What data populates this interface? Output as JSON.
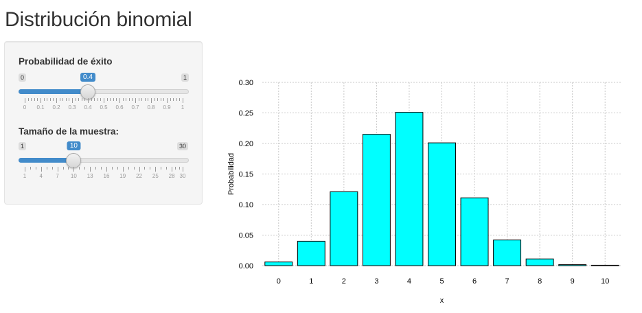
{
  "page": {
    "title": "Distribución binomial"
  },
  "sidebar": {
    "prob_slider": {
      "label": "Probabilidad de éxito",
      "min": 0,
      "max": 1,
      "value": 0.4,
      "min_label": "0",
      "max_label": "1",
      "value_label": "0.4",
      "ticks": [
        "0",
        "0.1",
        "0.2",
        "0.3",
        "0.4",
        "0.5",
        "0.6",
        "0.7",
        "0.8",
        "0.9",
        "1"
      ],
      "minor_per_major": 4
    },
    "size_slider": {
      "label": "Tamaño de la muestra:",
      "min": 1,
      "max": 30,
      "value": 10,
      "min_label": "1",
      "max_label": "30",
      "value_label": "10",
      "ticks": [
        "1",
        "4",
        "7",
        "10",
        "13",
        "16",
        "19",
        "22",
        "25",
        "28",
        "30"
      ],
      "minor_per_major": 2
    }
  },
  "chart_data": {
    "type": "bar",
    "categories": [
      "0",
      "1",
      "2",
      "3",
      "4",
      "5",
      "6",
      "7",
      "8",
      "9",
      "10"
    ],
    "values": [
      0.006,
      0.04,
      0.121,
      0.215,
      0.251,
      0.201,
      0.111,
      0.042,
      0.011,
      0.0016,
      0.0001
    ],
    "xlabel": "x",
    "ylabel": "Probabilidad",
    "ylim": [
      0,
      0.3
    ],
    "yticks": [
      "0.00",
      "0.05",
      "0.10",
      "0.15",
      "0.20",
      "0.25",
      "0.30"
    ],
    "grid": true,
    "bar_color": "#00ffff",
    "bar_border": "#000000"
  }
}
